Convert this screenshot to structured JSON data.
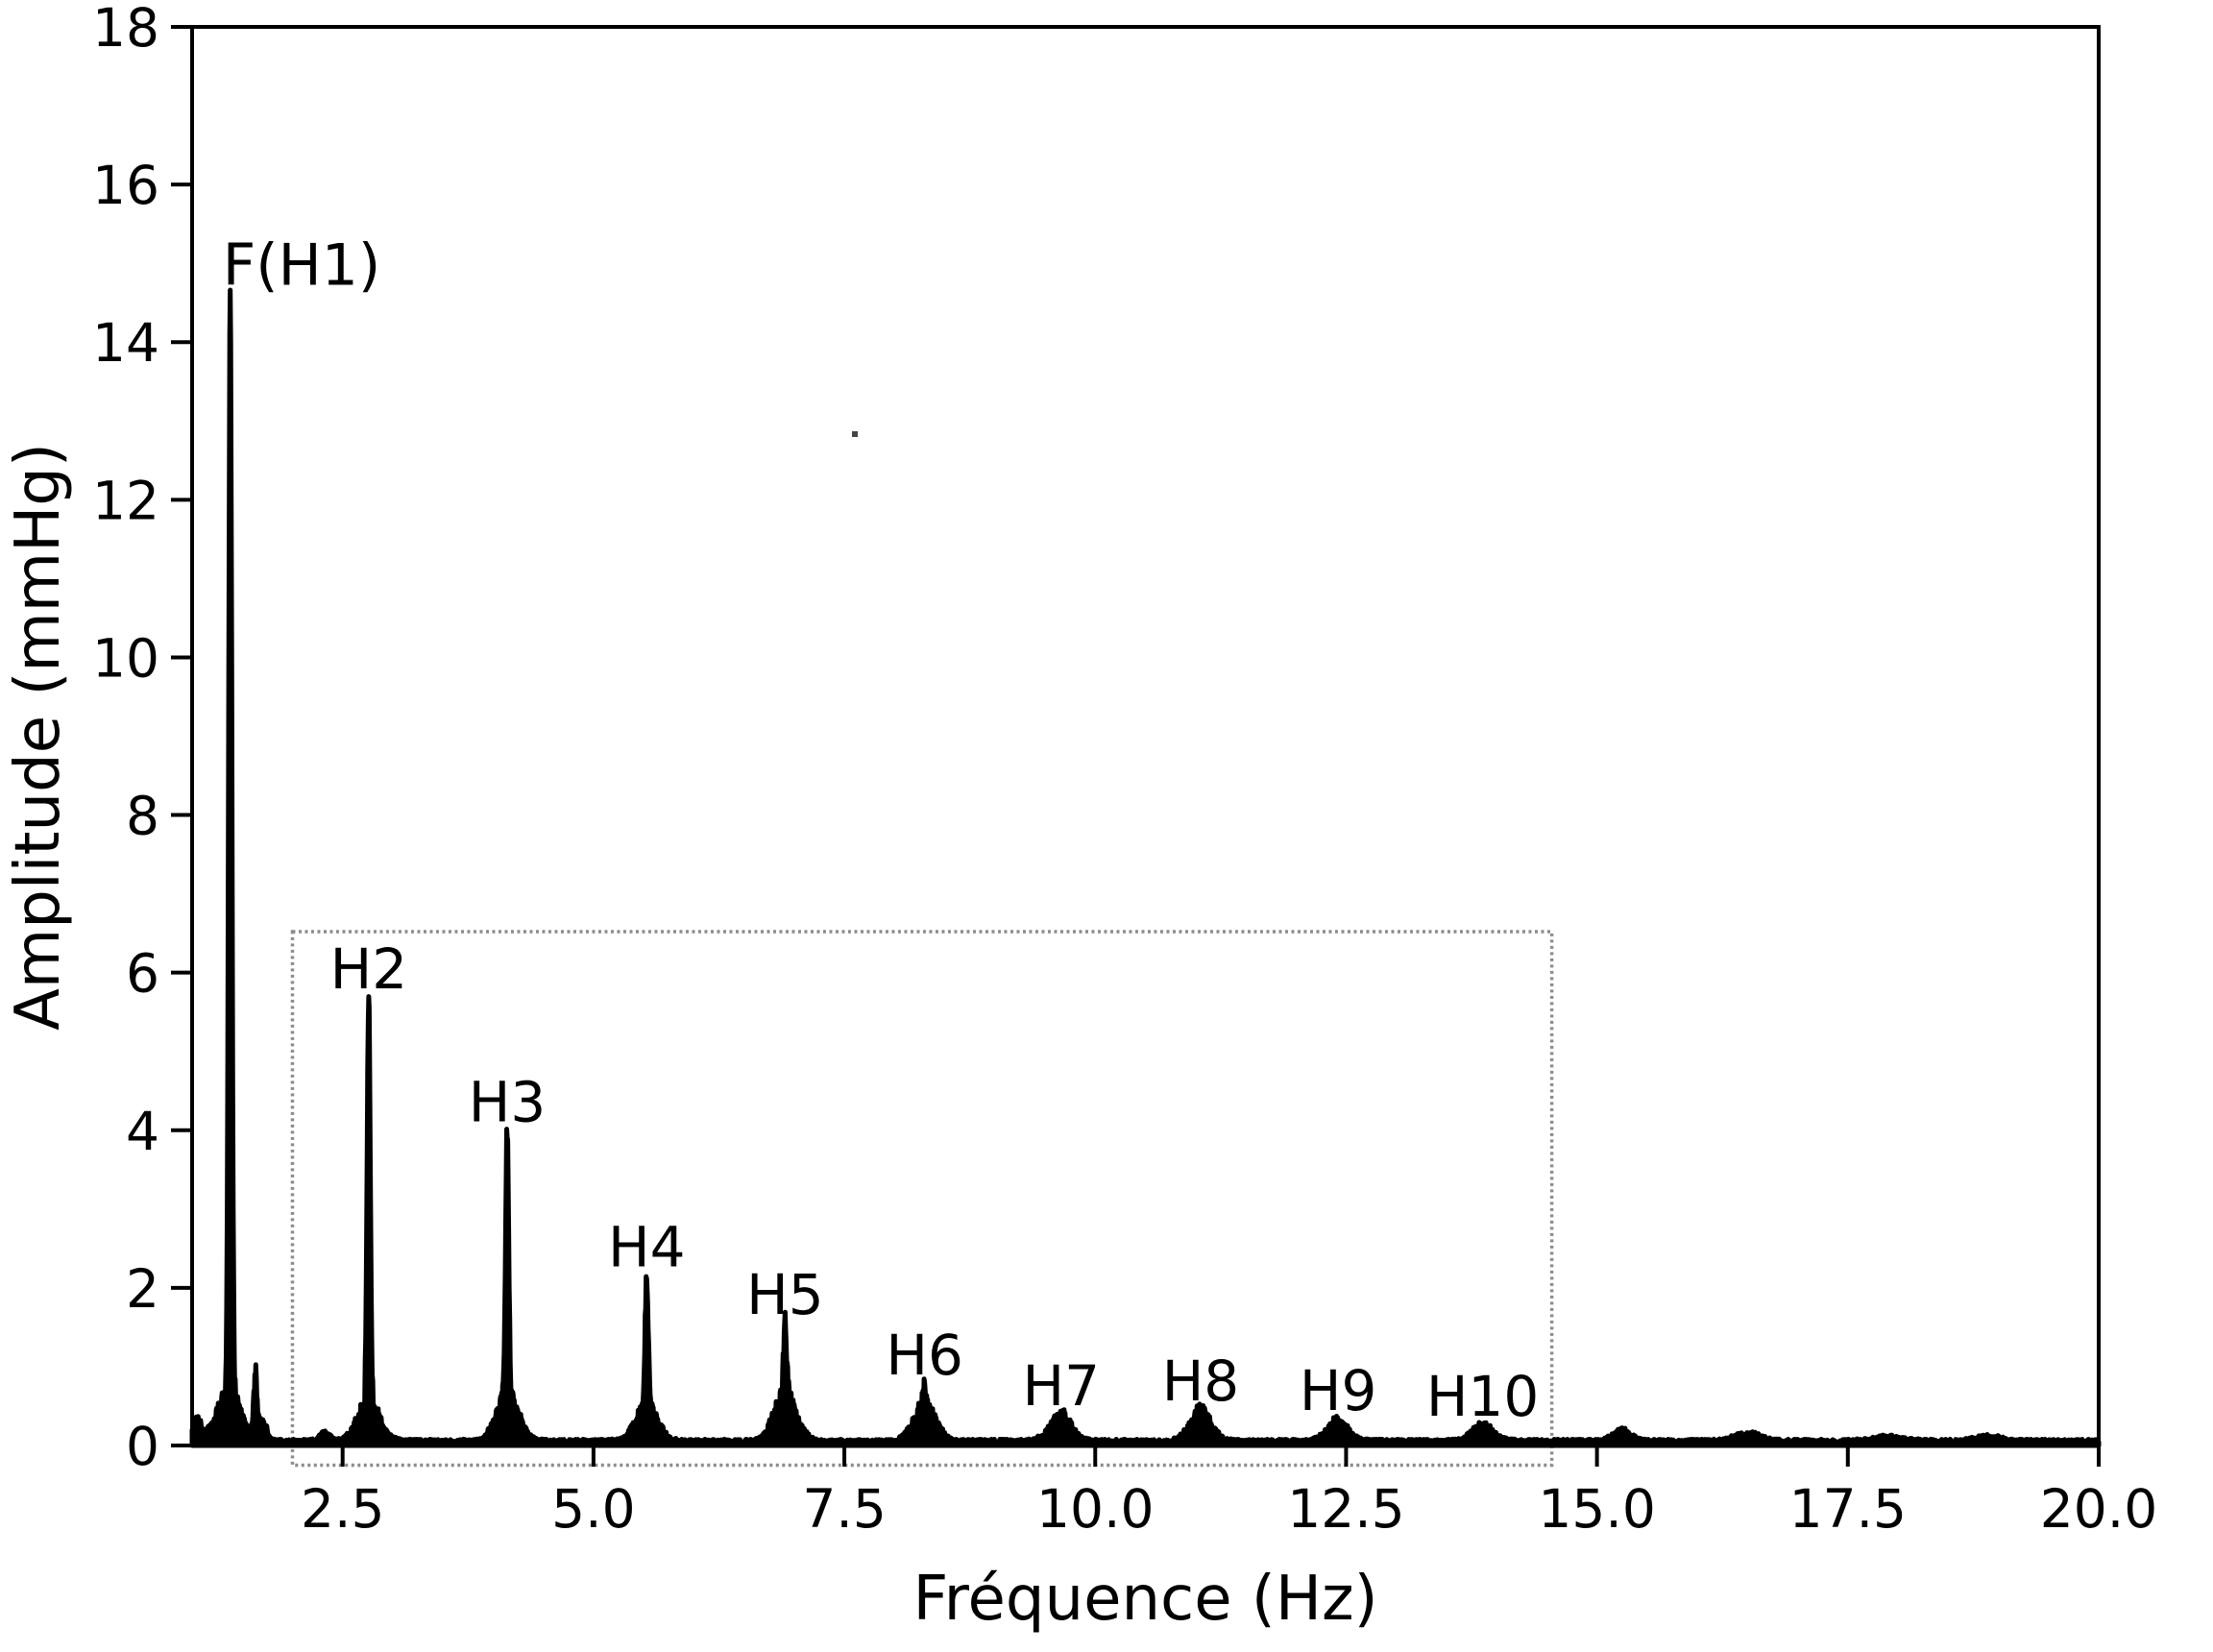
{
  "figure": {
    "background": "#ffffff",
    "trace_color": "#000000",
    "box_color": "#8c8c8c",
    "text_color": "#000000"
  },
  "chart_data": {
    "type": "line",
    "title": "",
    "xlabel": "Fréquence (Hz)",
    "ylabel": "Amplitude (mmHg)",
    "xlim": [
      1.0,
      20.0
    ],
    "ylim": [
      0,
      18
    ],
    "grid": false,
    "legend": null,
    "xticks": {
      "values": [
        2.5,
        5.0,
        7.5,
        10.0,
        12.5,
        15.0,
        17.5,
        20.0
      ],
      "labels": [
        "2.5",
        "5.0",
        "7.5",
        "10.0",
        "12.5",
        "15.0",
        "17.5",
        "20.0"
      ]
    },
    "yticks": {
      "values": [
        0,
        2,
        4,
        6,
        8,
        10,
        12,
        14,
        16,
        18
      ],
      "labels": [
        "0",
        "2",
        "4",
        "6",
        "8",
        "10",
        "12",
        "14",
        "16",
        "18"
      ]
    },
    "peaks": [
      {
        "label": "F(H1)",
        "freq": 1.38,
        "amp": 14.56,
        "pedestal": 0.55
      },
      {
        "label": "H2",
        "freq": 2.76,
        "amp": 5.63,
        "pedestal": 0.45
      },
      {
        "label": "H3",
        "freq": 4.14,
        "amp": 3.94,
        "pedestal": 0.55
      },
      {
        "label": "H4",
        "freq": 5.53,
        "amp": 2.1,
        "pedestal": 0.42
      },
      {
        "label": "H5",
        "freq": 6.91,
        "amp": 1.5,
        "pedestal": 0.55
      },
      {
        "label": "H6",
        "freq": 8.3,
        "amp": 0.73,
        "pedestal": 0.42
      },
      {
        "label": "H7",
        "freq": 9.66,
        "amp": 0.34,
        "pedestal": 0.28
      },
      {
        "label": "H8",
        "freq": 11.05,
        "amp": 0.4,
        "pedestal": 0.32
      },
      {
        "label": "H9",
        "freq": 12.42,
        "amp": 0.28,
        "pedestal": 0.22
      },
      {
        "label": "H10",
        "freq": 13.86,
        "amp": 0.21,
        "pedestal": 0.17
      }
    ],
    "secondary_peaks": [
      {
        "freq": 1.05,
        "amp": 0.22,
        "w": 0.04
      },
      {
        "freq": 1.63,
        "amp": 0.72,
        "w": 0.018
      },
      {
        "freq": 1.7,
        "amp": 0.25,
        "w": 0.04
      },
      {
        "freq": 2.32,
        "amp": 0.1,
        "w": 0.05
      },
      {
        "freq": 15.25,
        "amp": 0.13,
        "w": 0.09
      },
      {
        "freq": 16.5,
        "amp": 0.1,
        "w": 0.12
      },
      {
        "freq": 17.9,
        "amp": 0.05,
        "w": 0.15
      },
      {
        "freq": 18.9,
        "amp": 0.06,
        "w": 0.12
      }
    ],
    "noise_floor": 0.05,
    "highlight_box": {
      "x0": 2.0,
      "x1": 14.55,
      "y0": -0.25,
      "y1": 6.52
    }
  }
}
